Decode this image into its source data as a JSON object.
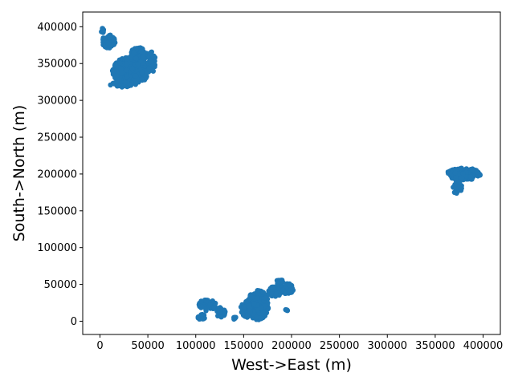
{
  "chart_data": {
    "type": "scatter",
    "title": "",
    "xlabel": "West->East (m)",
    "ylabel": "South->North (m)",
    "xlim": [
      -18000,
      418000
    ],
    "ylim": [
      -18000,
      420000
    ],
    "xticks": [
      0,
      50000,
      100000,
      150000,
      200000,
      250000,
      300000,
      350000,
      400000
    ],
    "yticks": [
      0,
      50000,
      100000,
      150000,
      200000,
      250000,
      300000,
      350000,
      400000
    ],
    "grid": false,
    "legend": "none",
    "colors": {
      "point": "#1f77b4",
      "axes": "#000000",
      "background": "#ffffff"
    },
    "series": [
      {
        "clusters": [
          {
            "cx": 32000,
            "cy": 340000,
            "rx": 19000,
            "ry": 19000,
            "n": 420
          },
          {
            "cx": 9000,
            "cy": 380000,
            "rx": 7000,
            "ry": 9000,
            "n": 70
          },
          {
            "cx": 40000,
            "cy": 362000,
            "rx": 9000,
            "ry": 10000,
            "n": 80
          },
          {
            "cx": 54000,
            "cy": 352000,
            "rx": 4000,
            "ry": 14000,
            "n": 40
          },
          {
            "cx": 2000,
            "cy": 395000,
            "rx": 2000,
            "ry": 4000,
            "n": 10
          },
          {
            "cx": 22000,
            "cy": 322000,
            "rx": 12000,
            "ry": 4000,
            "n": 40
          },
          {
            "cx": 380000,
            "cy": 200000,
            "rx": 18000,
            "ry": 8000,
            "n": 170
          },
          {
            "cx": 373000,
            "cy": 182000,
            "rx": 5000,
            "ry": 9000,
            "n": 30
          },
          {
            "cx": 112000,
            "cy": 22000,
            "rx": 9000,
            "ry": 8000,
            "n": 45
          },
          {
            "cx": 106000,
            "cy": 6000,
            "rx": 4000,
            "ry": 4000,
            "n": 15
          },
          {
            "cx": 126000,
            "cy": 12000,
            "rx": 5000,
            "ry": 7000,
            "n": 20
          },
          {
            "cx": 165000,
            "cy": 22000,
            "rx": 11000,
            "ry": 20000,
            "n": 300
          },
          {
            "cx": 152000,
            "cy": 16000,
            "rx": 5000,
            "ry": 12000,
            "n": 50
          },
          {
            "cx": 182000,
            "cy": 40000,
            "rx": 7000,
            "ry": 7000,
            "n": 60
          },
          {
            "cx": 196000,
            "cy": 44000,
            "rx": 6000,
            "ry": 7000,
            "n": 50
          },
          {
            "cx": 188000,
            "cy": 53000,
            "rx": 4000,
            "ry": 4000,
            "n": 20
          },
          {
            "cx": 195000,
            "cy": 15000,
            "rx": 1500,
            "ry": 2500,
            "n": 5
          },
          {
            "cx": 141000,
            "cy": 4000,
            "rx": 2000,
            "ry": 2000,
            "n": 5
          }
        ]
      }
    ]
  }
}
